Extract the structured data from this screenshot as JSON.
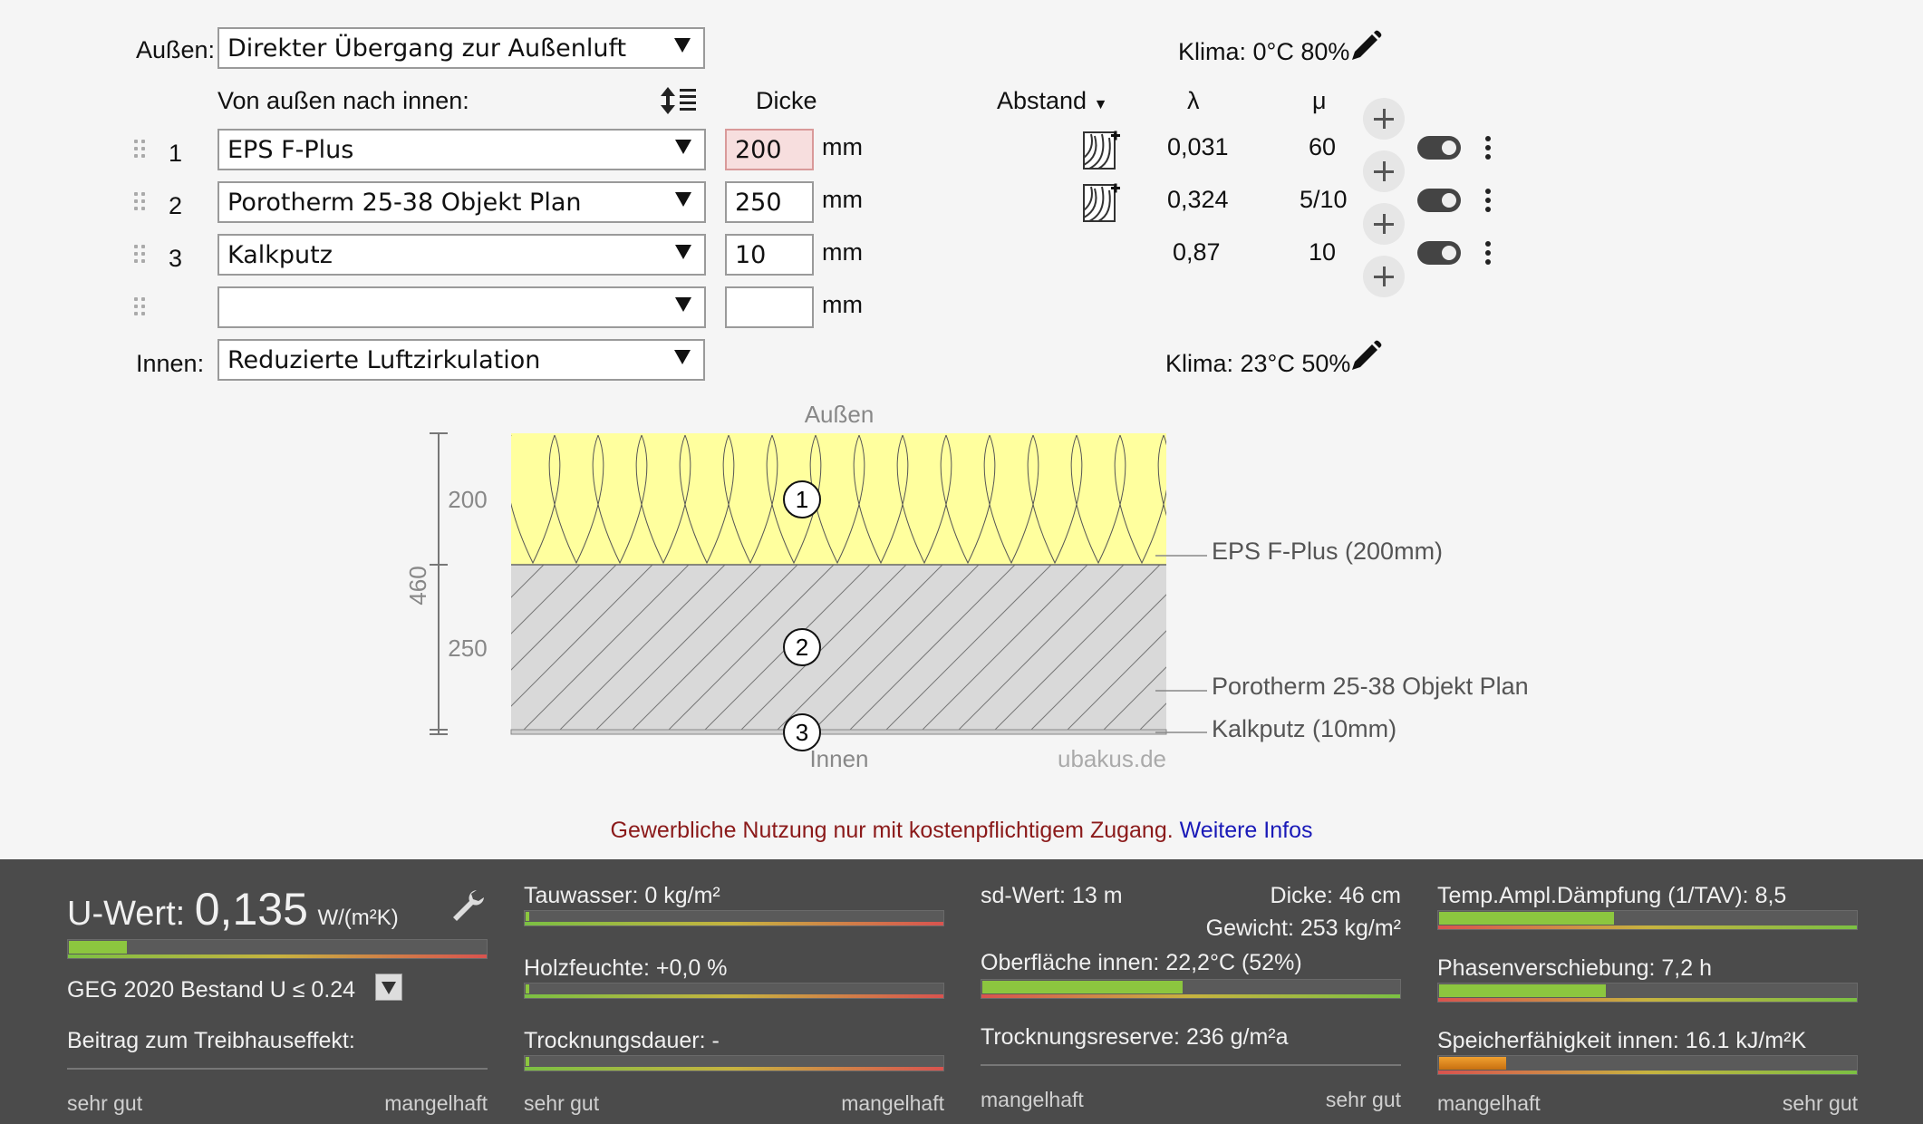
{
  "outer": {
    "label": "Außen:",
    "select": "Direkter Übergang zur Außenluft",
    "klima": "Klima: 0°C 80%"
  },
  "inner": {
    "label": "Innen:",
    "select": "Reduzierte Luftzirkulation",
    "klima": "Klima: 23°C 50%"
  },
  "headers": {
    "layers": "Von außen nach innen:",
    "thickness": "Dicke",
    "distance": "Abstand",
    "lambda": "λ",
    "mu": "μ"
  },
  "unit": "mm",
  "layers": [
    {
      "index": "1",
      "material": "EPS F-Plus",
      "thickness": "200",
      "lambda": "0,031",
      "mu": "60"
    },
    {
      "index": "2",
      "material": "Porotherm 25-38 Objekt Plan",
      "thickness": "250",
      "lambda": "0,324",
      "mu": "5/10"
    },
    {
      "index": "3",
      "material": "Kalkputz",
      "thickness": "10",
      "lambda": "0,87",
      "mu": "10"
    },
    {
      "index": "",
      "material": "",
      "thickness": "",
      "lambda": "",
      "mu": ""
    }
  ],
  "diagram": {
    "top_label": "Außen",
    "bottom_label": "Innen",
    "watermark": "ubakus.de",
    "dim_total": "460",
    "dim_1": "200",
    "dim_2": "250",
    "markers": [
      "1",
      "2",
      "3"
    ],
    "layer_labels": [
      "EPS F-Plus (200mm)",
      "Porotherm 25-38 Objekt Plan",
      "Kalkputz (10mm)"
    ]
  },
  "notice": {
    "text": "Gewerbliche Nutzung nur mit kostenpflichtigem Zugang.",
    "link": "Weitere Infos"
  },
  "results": {
    "u_label": "U-Wert:",
    "u_value": "0,135",
    "u_unit": "W/(m²K)",
    "u_fraction": 0.14,
    "standard": "GEG 2020 Bestand U ≤ 0.24",
    "greenhouse": "Beitrag zum Treibhauseffekt:",
    "scale_good": "sehr gut",
    "scale_bad": "mangelhaft",
    "tauwasser": "Tauwasser: 0 kg/m²",
    "holzfeuchte": "Holzfeuchte: +0,0 %",
    "trocknungsdauer": "Trocknungsdauer: -",
    "sd": "sd-Wert: 13 m",
    "dicke": "Dicke: 46 cm",
    "gewicht": "Gewicht: 253 kg/m²",
    "oberflaeche": "Oberfläche innen: 22,2°C (52%)",
    "oberflaeche_fraction": 0.48,
    "trocknungsreserve": "Trocknungsreserve: 236 g/m²a",
    "tav": "Temp.Ampl.Dämpfung (1/TAV): 8,5",
    "tav_fraction": 0.42,
    "phase": "Phasenverschiebung: 7,2 h",
    "phase_fraction": 0.4,
    "speicher": "Speicherfähigkeit innen: 16.1 kJ/m²K",
    "speicher_fraction": 0.16
  },
  "colors": {
    "eps_fill": "#ffff9e",
    "brick_fill": "#d9d9d9",
    "notice": "#8b1a1a",
    "link": "#1a1ab8",
    "bar_green": "#8cc63f"
  }
}
